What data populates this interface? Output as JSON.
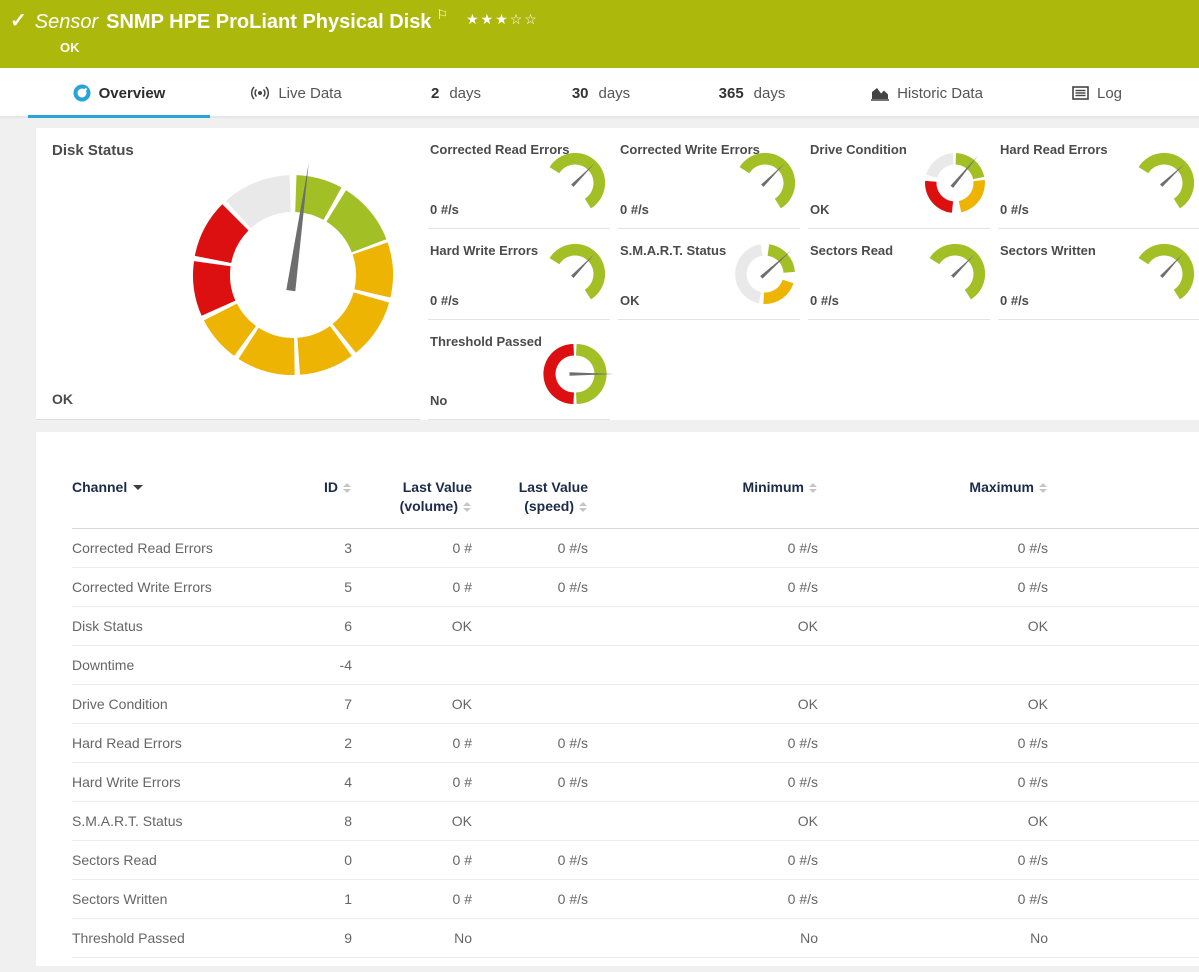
{
  "colors": {
    "brand_green": "#adb80d",
    "active_tab_blue": "#2aa3d9",
    "page_bg": "#f0f0f0",
    "header_text_navy": "#1c2b4a",
    "gauge_green": "#a2bf26",
    "gauge_yellow": "#eeb404",
    "gauge_red": "#dc1010",
    "gauge_gray": "#e9e9e9",
    "needle_gray": "#6e6e6e"
  },
  "header": {
    "check_icon": "✓",
    "kind": "Sensor",
    "title": "SNMP HPE ProLiant Physical Disk",
    "flag_icon": "⚐",
    "stars": "★★★☆☆",
    "status": "OK"
  },
  "tabs": [
    {
      "label": "Overview",
      "icon": "gauge-icon",
      "active": true
    },
    {
      "label": "Live Data",
      "icon": "live-data-icon"
    },
    {
      "number": "2",
      "label": "days"
    },
    {
      "number": "30",
      "label": "days"
    },
    {
      "number": "365",
      "label": "days"
    },
    {
      "label": "Historic Data",
      "icon": "area-chart-icon"
    },
    {
      "label": "Log",
      "icon": "log-icon"
    }
  ],
  "gauges": {
    "disk": {
      "label": "Disk Status",
      "value": "OK",
      "needle_deg": 8,
      "needle_len": 1.13,
      "segments": [
        [
          "green",
          2,
          29
        ],
        [
          "green",
          32,
          69
        ],
        [
          "yellow",
          71,
          103
        ],
        [
          "yellow",
          106,
          141
        ],
        [
          "yellow",
          144,
          176
        ],
        [
          "yellow",
          179,
          213
        ],
        [
          "yellow",
          216,
          243
        ],
        [
          "red",
          246,
          278
        ],
        [
          "red",
          281,
          315
        ],
        [
          "gray",
          318,
          358
        ]
      ]
    },
    "mini": [
      {
        "label": "Corrected Read Errors",
        "value": "0 #/s",
        "needle_deg": 45,
        "needle_len": 0.92,
        "segments": [
          [
            "green",
            -58,
            148
          ]
        ]
      },
      {
        "label": "Corrected Write Errors",
        "value": "0 #/s",
        "needle_deg": 45,
        "needle_len": 0.92,
        "segments": [
          [
            "green",
            -58,
            148
          ]
        ]
      },
      {
        "label": "Drive Condition",
        "value": "OK",
        "needle_deg": 40,
        "needle_len": 1.18,
        "segments": [
          [
            "green",
            2,
            78
          ],
          [
            "yellow",
            84,
            168
          ],
          [
            "red",
            186,
            274
          ],
          [
            "gray",
            286,
            356
          ]
        ]
      },
      {
        "label": "Hard Read Errors",
        "value": "0 #/s",
        "needle_deg": 47,
        "needle_len": 0.92,
        "segments": [
          [
            "green",
            -58,
            148
          ]
        ]
      },
      {
        "label": "Hard Write Errors",
        "value": "0 #/s",
        "needle_deg": 44,
        "needle_len": 0.92,
        "segments": [
          [
            "green",
            -58,
            148
          ]
        ]
      },
      {
        "label": "S.M.A.R.T. Status",
        "value": "OK",
        "needle_deg": 48,
        "needle_len": 1.18,
        "segments": [
          [
            "green",
            8,
            86
          ],
          [
            "yellow",
            108,
            183
          ],
          [
            "gray",
            192,
            352
          ]
        ]
      },
      {
        "label": "Sectors Read",
        "value": "0 #/s",
        "needle_deg": 45,
        "needle_len": 0.92,
        "segments": [
          [
            "green",
            -58,
            148
          ]
        ]
      },
      {
        "label": "Sectors Written",
        "value": "0 #/s",
        "needle_deg": 43,
        "needle_len": 0.92,
        "segments": [
          [
            "green",
            -58,
            148
          ]
        ]
      },
      {
        "label": "Threshold Passed",
        "value": "No",
        "needle_deg": 90,
        "needle_len": 1.3,
        "segments": [
          [
            "green",
            3,
            177
          ],
          [
            "red",
            183,
            357
          ]
        ]
      }
    ]
  },
  "table": {
    "columns": [
      {
        "label": "Channel",
        "sort": "caret"
      },
      {
        "label": "ID",
        "sort": "updown"
      },
      {
        "label": "Last Value",
        "label2": "(volume)",
        "sort": "updown"
      },
      {
        "label": "Last Value",
        "label2": "(speed)",
        "sort": "updown"
      },
      {
        "label": "Minimum",
        "sort": "updown"
      },
      {
        "label": "Maximum",
        "sort": "updown"
      }
    ],
    "rows": [
      {
        "channel": "Corrected Read Errors",
        "id": "3",
        "last_volume": "0 #",
        "last_speed": "0 #/s",
        "minimum": "0 #/s",
        "maximum": "0 #/s"
      },
      {
        "channel": "Corrected Write Errors",
        "id": "5",
        "last_volume": "0 #",
        "last_speed": "0 #/s",
        "minimum": "0 #/s",
        "maximum": "0 #/s"
      },
      {
        "channel": "Disk Status",
        "id": "6",
        "last_volume": "OK",
        "last_speed": "",
        "minimum": "OK",
        "maximum": "OK"
      },
      {
        "channel": "Downtime",
        "id": "-4",
        "last_volume": "",
        "last_speed": "",
        "minimum": "",
        "maximum": ""
      },
      {
        "channel": "Drive Condition",
        "id": "7",
        "last_volume": "OK",
        "last_speed": "",
        "minimum": "OK",
        "maximum": "OK"
      },
      {
        "channel": "Hard Read Errors",
        "id": "2",
        "last_volume": "0 #",
        "last_speed": "0 #/s",
        "minimum": "0 #/s",
        "maximum": "0 #/s"
      },
      {
        "channel": "Hard Write Errors",
        "id": "4",
        "last_volume": "0 #",
        "last_speed": "0 #/s",
        "minimum": "0 #/s",
        "maximum": "0 #/s"
      },
      {
        "channel": "S.M.A.R.T. Status",
        "id": "8",
        "last_volume": "OK",
        "last_speed": "",
        "minimum": "OK",
        "maximum": "OK"
      },
      {
        "channel": "Sectors Read",
        "id": "0",
        "last_volume": "0 #",
        "last_speed": "0 #/s",
        "minimum": "0 #/s",
        "maximum": "0 #/s"
      },
      {
        "channel": "Sectors Written",
        "id": "1",
        "last_volume": "0 #",
        "last_speed": "0 #/s",
        "minimum": "0 #/s",
        "maximum": "0 #/s"
      },
      {
        "channel": "Threshold Passed",
        "id": "9",
        "last_volume": "No",
        "last_speed": "",
        "minimum": "No",
        "maximum": "No"
      }
    ]
  }
}
